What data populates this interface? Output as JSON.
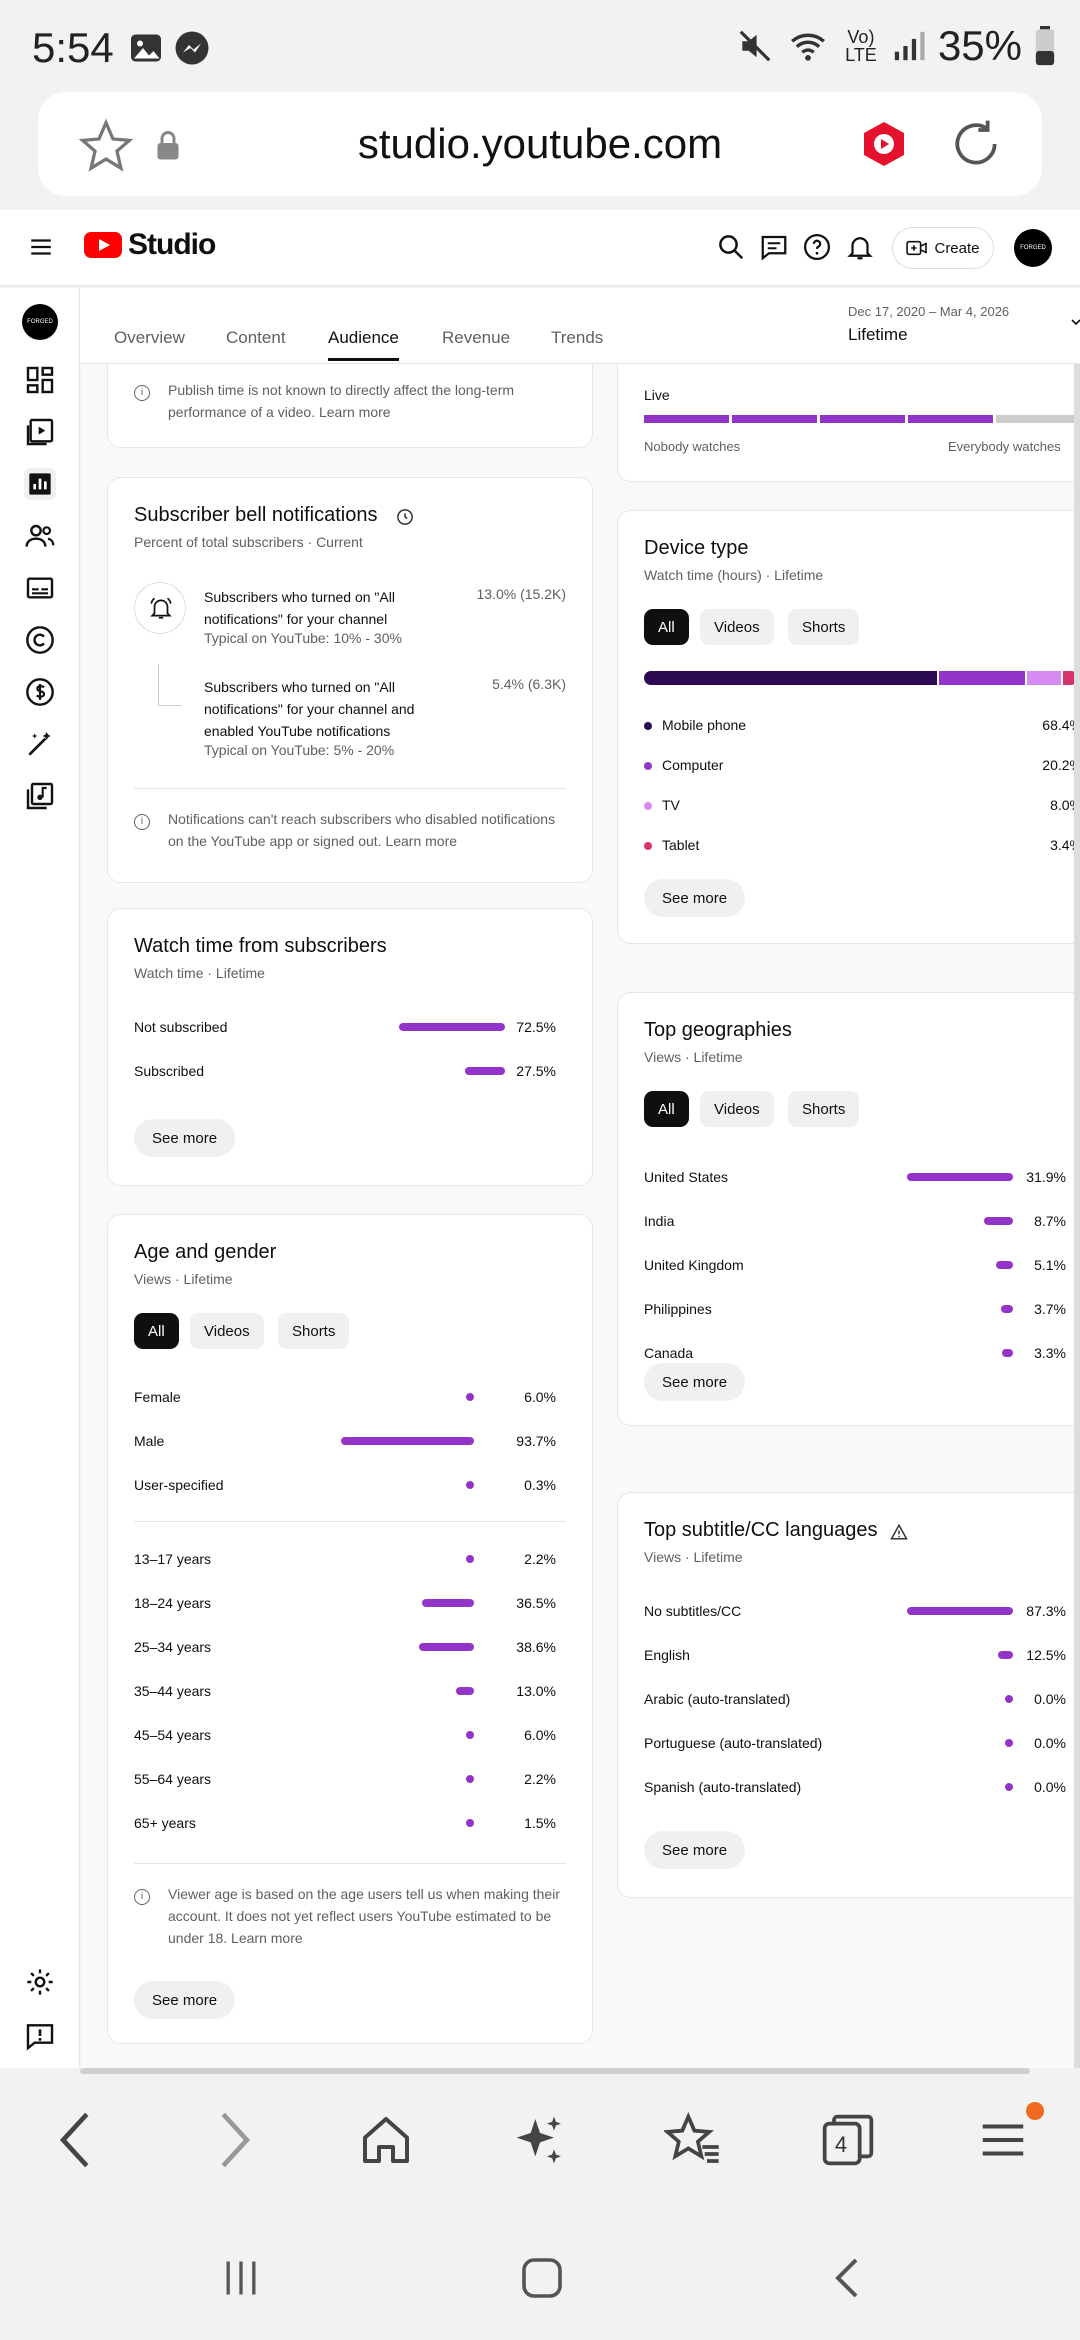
{
  "status_bar": {
    "time": "5:54",
    "battery": "35%",
    "network": "Vo) LTE"
  },
  "browser": {
    "url": "studio.youtube.com",
    "tab_count": "4"
  },
  "header": {
    "logo_text": "Studio",
    "create_label": "Create",
    "avatar_text": "FORGED"
  },
  "tabs": [
    "Overview",
    "Content",
    "Audience",
    "Revenue",
    "Trends"
  ],
  "date_range": {
    "dates": "Dec 17, 2020 – Mar 4, 2026",
    "label": "Lifetime"
  },
  "publish_card": {
    "info": "Publish time is not known to directly affect the long-term performance of a video. Learn more"
  },
  "bell": {
    "title": "Subscriber bell notifications",
    "subtitle": "Percent of total subscribers · Current",
    "row1_text": "Subscribers who turned on \"All notifications\" for your channel",
    "row1_typical": "Typical on YouTube: 10% - 30%",
    "row1_value": "13.0% (15.2K)",
    "row2_text": "Subscribers who turned on \"All notifications\" for your channel and enabled YouTube notifications",
    "row2_typical": "Typical on YouTube: 5% - 20%",
    "row2_value": "5.4% (6.3K)",
    "info": "Notifications can't reach subscribers who disabled notifications on the YouTube app or signed out. Learn more"
  },
  "watch_subs": {
    "title": "Watch time from subscribers",
    "subtitle": "Watch time · Lifetime",
    "rows": [
      {
        "label": "Not subscribed",
        "value": "72.5%",
        "pct": 72.5
      },
      {
        "label": "Subscribed",
        "value": "27.5%",
        "pct": 27.5
      }
    ],
    "see_more": "See more"
  },
  "age_gender": {
    "title": "Age and gender",
    "subtitle": "Views · Lifetime",
    "chips": [
      "All",
      "Videos",
      "Shorts"
    ],
    "gender": [
      {
        "label": "Female",
        "value": "6.0%",
        "pct": 6.0
      },
      {
        "label": "Male",
        "value": "93.7%",
        "pct": 93.7
      },
      {
        "label": "User-specified",
        "value": "0.3%",
        "pct": 0.3
      }
    ],
    "ages": [
      {
        "label": "13–17 years",
        "value": "2.2%",
        "pct": 2.2
      },
      {
        "label": "18–24 years",
        "value": "36.5%",
        "pct": 36.5
      },
      {
        "label": "25–34 years",
        "value": "38.6%",
        "pct": 38.6
      },
      {
        "label": "35–44 years",
        "value": "13.0%",
        "pct": 13.0
      },
      {
        "label": "45–54 years",
        "value": "6.0%",
        "pct": 6.0
      },
      {
        "label": "55–64 years",
        "value": "2.2%",
        "pct": 2.2
      },
      {
        "label": "65+ years",
        "value": "1.5%",
        "pct": 1.5
      }
    ],
    "info": "Viewer age is based on the age users tell us when making their account. It does not yet reflect users YouTube estimated to be under 18. Learn more",
    "see_more": "See more"
  },
  "live_card": {
    "label": "Live",
    "left": "Nobody watches",
    "right": "Everybody watches"
  },
  "device": {
    "title": "Device type",
    "subtitle": "Watch time (hours) · Lifetime",
    "chips": [
      "All",
      "Videos",
      "Shorts"
    ],
    "rows": [
      {
        "label": "Mobile phone",
        "value": "68.4%",
        "pct": 68.4,
        "color": "#2b0a52"
      },
      {
        "label": "Computer",
        "value": "20.2%",
        "pct": 20.2,
        "color": "#9334c8"
      },
      {
        "label": "TV",
        "value": "8.0%",
        "pct": 8.0,
        "color": "#d58bf0"
      },
      {
        "label": "Tablet",
        "value": "3.4%",
        "pct": 3.4,
        "color": "#d6336c"
      }
    ],
    "see_more": "See more"
  },
  "geo": {
    "title": "Top geographies",
    "subtitle": "Views · Lifetime",
    "chips": [
      "All",
      "Videos",
      "Shorts"
    ],
    "rows": [
      {
        "label": "United States",
        "value": "31.9%",
        "pct": 31.9
      },
      {
        "label": "India",
        "value": "8.7%",
        "pct": 8.7
      },
      {
        "label": "United Kingdom",
        "value": "5.1%",
        "pct": 5.1
      },
      {
        "label": "Philippines",
        "value": "3.7%",
        "pct": 3.7
      },
      {
        "label": "Canada",
        "value": "3.3%",
        "pct": 3.3
      }
    ],
    "see_more": "See more"
  },
  "subtitles": {
    "title": "Top subtitle/CC languages",
    "subtitle": "Views · Lifetime",
    "rows": [
      {
        "label": "No subtitles/CC",
        "value": "87.3%",
        "pct": 87.3
      },
      {
        "label": "English",
        "value": "12.5%",
        "pct": 12.5
      },
      {
        "label": "Arabic (auto-translated)",
        "value": "0.0%",
        "pct": 0.0
      },
      {
        "label": "Portuguese (auto-translated)",
        "value": "0.0%",
        "pct": 0.0
      },
      {
        "label": "Spanish (auto-translated)",
        "value": "0.0%",
        "pct": 0.0
      }
    ],
    "see_more": "See more"
  },
  "colors": {
    "accent": "#9334c8",
    "brand": "#ff0000"
  }
}
